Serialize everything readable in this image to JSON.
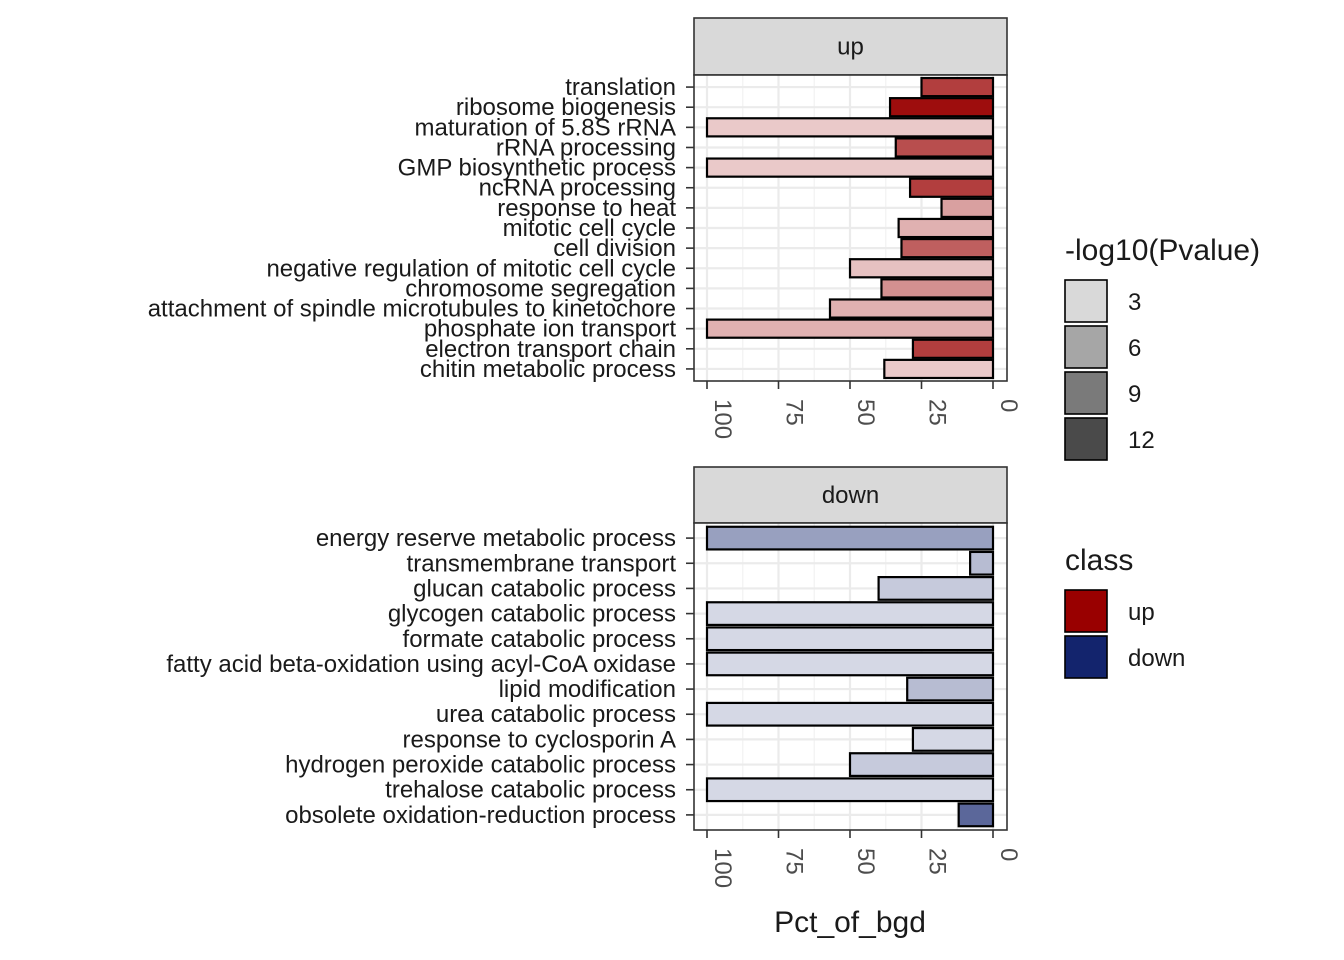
{
  "chart_data": {
    "type": "bar",
    "orientation": "horizontal",
    "x_axis": {
      "reversed": true,
      "limits": [
        0,
        102
      ],
      "ticks": [
        100,
        75,
        50,
        25,
        0
      ]
    },
    "xlabel": "Pct_of_bgd",
    "grid": true,
    "legend_placement": "right",
    "panels": [
      {
        "name": "up",
        "class_color": "#990000",
        "categories": [
          "translation",
          "ribosome biogenesis",
          "maturation of 5.8S rRNA",
          "rRNA processing",
          "GMP biosynthetic process",
          "ncRNA processing",
          "response to heat",
          "mitotic cell cycle",
          "cell division",
          "negative regulation of mitotic cell cycle",
          "chromosome segregation",
          "attachment of spindle microtubules to kinetochore",
          "phosphate ion transport",
          "electron transport chain",
          "chitin metabolic process"
        ],
        "values": [
          25,
          36,
          100,
          34,
          100,
          29,
          18,
          33,
          32,
          50,
          39,
          57,
          100,
          28,
          38
        ],
        "neg_log10_pvalue": [
          11,
          14,
          2.5,
          10,
          2.5,
          11,
          5,
          4,
          9,
          3,
          6,
          4,
          4,
          11,
          2.5
        ]
      },
      {
        "name": "down",
        "class_color": "#13246d",
        "categories": [
          "energy reserve metabolic process",
          "transmembrane transport",
          "glucan catabolic process",
          "glycogen catabolic process",
          "formate catabolic process",
          "fatty acid beta-oxidation using acyl-CoA oxidase",
          "lipid modification",
          "urea catabolic process",
          "response to cyclosporin A",
          "hydrogen peroxide catabolic process",
          "trehalose catabolic process",
          "obsolete oxidation-reduction process"
        ],
        "values": [
          100,
          8,
          40,
          100,
          100,
          100,
          30,
          100,
          28,
          50,
          100,
          12
        ],
        "neg_log10_pvalue": [
          6,
          4,
          3,
          2,
          2,
          2,
          4,
          2,
          2,
          3,
          2,
          10
        ]
      }
    ],
    "legends": [
      {
        "title": "-log10(Pvalue)",
        "entries": [
          {
            "label": "3",
            "color": "#d9d9d9"
          },
          {
            "label": "6",
            "color": "#a6a6a6"
          },
          {
            "label": "9",
            "color": "#7a7a7a"
          },
          {
            "label": "12",
            "color": "#4a4a4a"
          }
        ]
      },
      {
        "title": "class",
        "entries": [
          {
            "label": "up",
            "color": "#990000"
          },
          {
            "label": "down",
            "color": "#13246d"
          }
        ]
      }
    ]
  }
}
